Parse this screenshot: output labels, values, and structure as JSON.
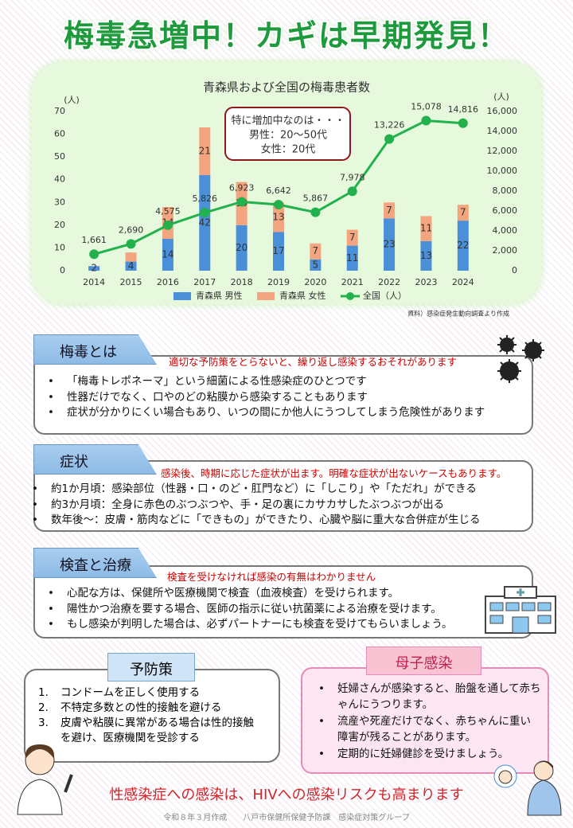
{
  "title": "梅毒急増中！カギは早期発見！",
  "chart_data": {
    "type": "combo",
    "title": "青森県および全国の梅毒患者数",
    "stacked": true,
    "categories": [
      "2014",
      "2015",
      "2016",
      "2017",
      "2018",
      "2019",
      "2020",
      "2021",
      "2022",
      "2023",
      "2024"
    ],
    "series": [
      {
        "name": "青森県 男性",
        "type": "bar",
        "color": "#4a8fd8",
        "values": [
          2,
          4,
          14,
          42,
          20,
          17,
          5,
          11,
          23,
          13,
          22
        ]
      },
      {
        "name": "青森県 女性",
        "type": "bar",
        "color": "#f2a57e",
        "values": [
          null,
          4,
          14,
          21,
          19,
          13,
          7,
          7,
          7,
          11,
          7
        ],
        "value_labels": [
          null,
          null,
          "14",
          "21",
          "19",
          "13",
          "7",
          "7",
          "7",
          "11",
          "7"
        ]
      },
      {
        "name": "全国（人）",
        "type": "line",
        "axis": "y2",
        "color": "#22b14c",
        "values": [
          1661,
          2690,
          4575,
          5826,
          6923,
          6642,
          5867,
          7978,
          13226,
          15078,
          14816
        ],
        "value_labels": [
          "1,661",
          "2,690",
          "4,575",
          "5,826",
          "6,923",
          "6,642",
          "5,867",
          "7,978",
          "13,226",
          "15,078",
          "14,816"
        ]
      }
    ],
    "ylim": [
      0,
      70
    ],
    "yticks": [
      0,
      10,
      20,
      30,
      40,
      50,
      60,
      70
    ],
    "y2lim": [
      0,
      16000
    ],
    "y2ticks": [
      0,
      {
        "value": 2000,
        "label": "2,000"
      },
      {
        "value": 4000,
        "label": "4,000"
      },
      {
        "value": 6000,
        "label": "6,000"
      },
      {
        "value": 8000,
        "label": "8,000"
      },
      {
        "value": 10000,
        "label": "10,000"
      },
      {
        "value": 12000,
        "label": "12,000"
      },
      {
        "value": 14000,
        "label": "14,000"
      },
      {
        "value": 16000,
        "label": "16,000"
      }
    ],
    "y_unit": "(人)",
    "y2_unit": "(人)",
    "annotation": [
      "特に増加中なのは・・・",
      "男性：20～50代",
      "女性：20代"
    ],
    "source": "資料）感染症発生動向調査より作成",
    "legend": "bottom",
    "grid": false
  },
  "sections": [
    {
      "heading": "梅毒とは",
      "note": "適切な予防策をとらないと、繰り返し感染するおそれがあります",
      "items": [
        "「梅毒トレポネーマ」という細菌による性感染症のひとつです",
        "性器だけでなく、口やのどの粘膜から感染することもあります",
        "症状が分かりにくい場合もあり、いつの間にか他人にうつしてしまう危険性があります"
      ]
    },
    {
      "heading": "症状",
      "note": "感染後、時期に応じた症状が出ます。明確な症状が出ないケースもあります。",
      "items": [
        "約1か月頃：感染部位（性器・口・のど・肛門など）に「しこり」や「ただれ」ができる",
        "約3か月頃：全身に赤色のぶつぶつや、手・足の裏にカサカサしたぶつぶつが出る",
        "数年後～：皮膚・筋肉などに「できもの」ができたり、心臓や脳に重大な合併症が生じる"
      ]
    },
    {
      "heading": "検査と治療",
      "note": "検査を受けなければ感染の有無はわかりません",
      "items": [
        "心配な方は、保健所や医療機関で検査（血液検査）を受けられます。",
        "陽性かつ治療を要する場合、医師の指示に従い抗菌薬による治療を受けます。",
        "もし感染が判明した場合は、必ずパートナーにも検査を受けてもらいましょう。"
      ]
    }
  ],
  "prevention": {
    "heading": "予防策",
    "items": [
      {
        "marker": "1.",
        "text": "コンドームを正しく使用する"
      },
      {
        "marker": "2.",
        "text": "不特定多数との性的接触を避ける"
      },
      {
        "marker": "3.",
        "text": "皮膚や粘膜に異常がある場合は性的接触を避け、医療機関を受診する"
      }
    ]
  },
  "maternal": {
    "heading": "母子感染",
    "items": [
      "妊婦さんが感染すると、胎盤を通して赤ちゃんにうつります。",
      "流産や死産だけでなく、赤ちゃんに重い障害が残ることがあります。",
      "定期的に妊婦健診を受けましょう。"
    ]
  },
  "message": "性感染症への感染は、HIVへの感染リスクも高まります",
  "footer": "令和８年３月作成　　八戸市保健所保健予防課　感染症対策グループ"
}
